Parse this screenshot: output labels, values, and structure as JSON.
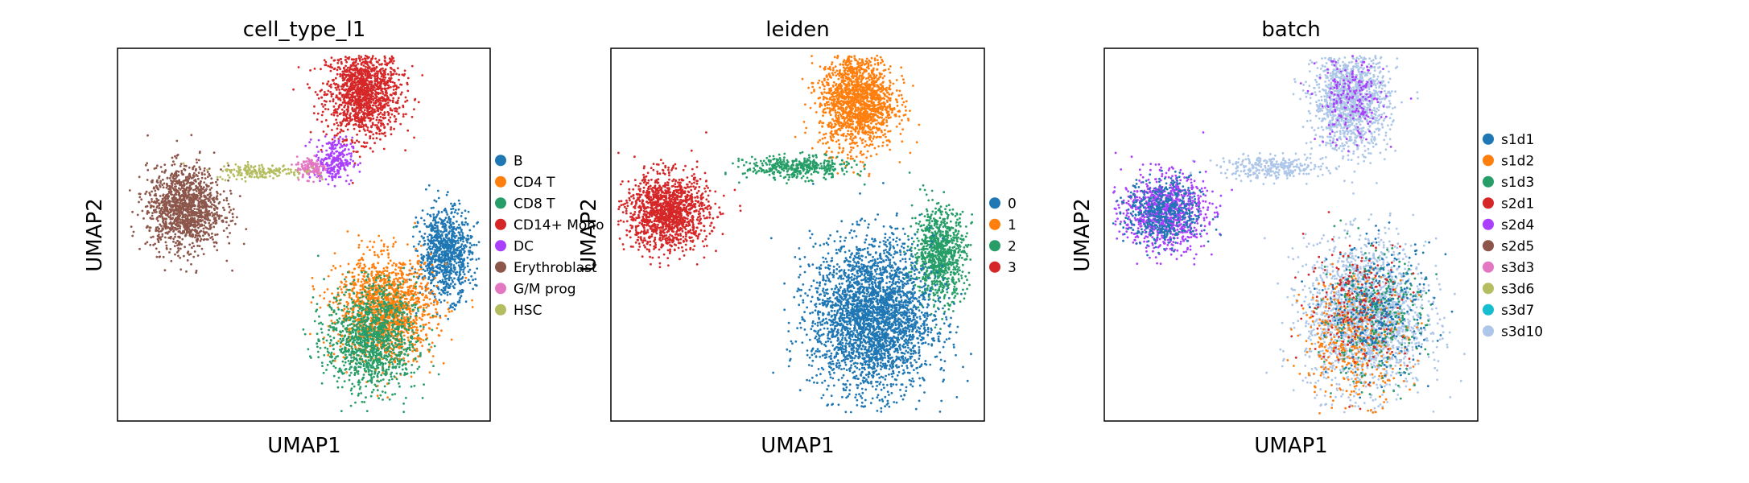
{
  "figure": {
    "background": "#ffffff",
    "axis_color": "#000000"
  },
  "chart_data": [
    {
      "type": "scatter",
      "title": "cell_type_l1",
      "xlabel": "UMAP1",
      "ylabel": "UMAP2",
      "ticks": "none",
      "grid": false,
      "legend_position": "right",
      "legend": [
        {
          "label": "B",
          "color": "#1f77b4"
        },
        {
          "label": "CD4 T",
          "color": "#ff7f0e"
        },
        {
          "label": "CD8 T",
          "color": "#279e68"
        },
        {
          "label": "CD14+ Mono",
          "color": "#d62728"
        },
        {
          "label": "DC",
          "color": "#aa40fc"
        },
        {
          "label": "Erythroblast",
          "color": "#8c564b"
        },
        {
          "label": "G/M prog",
          "color": "#e377c2"
        },
        {
          "label": "HSC",
          "color": "#b5bd61"
        }
      ],
      "regions": [
        {
          "label": "CD14+ Mono",
          "color": "#d62728",
          "cx": 0.66,
          "cy": 0.88,
          "rx": 0.1,
          "ry": 0.12,
          "n": 1400
        },
        {
          "label": "DC",
          "color": "#aa40fc",
          "cx": 0.58,
          "cy": 0.7,
          "rx": 0.05,
          "ry": 0.06,
          "n": 250
        },
        {
          "label": "G/M prog",
          "color": "#e377c2",
          "cx": 0.52,
          "cy": 0.68,
          "rx": 0.04,
          "ry": 0.03,
          "n": 120
        },
        {
          "label": "HSC",
          "color": "#b5bd61",
          "cx": 0.38,
          "cy": 0.67,
          "rx": 0.12,
          "ry": 0.02,
          "n": 180
        },
        {
          "label": "Erythroblast",
          "color": "#8c564b",
          "cx": 0.18,
          "cy": 0.57,
          "rx": 0.1,
          "ry": 0.11,
          "n": 1300
        },
        {
          "label": "B",
          "color": "#1f77b4",
          "cx": 0.88,
          "cy": 0.45,
          "rx": 0.07,
          "ry": 0.12,
          "n": 900
        },
        {
          "label": "CD4 T",
          "color": "#ff7f0e",
          "cx": 0.72,
          "cy": 0.3,
          "rx": 0.13,
          "ry": 0.14,
          "n": 1500
        },
        {
          "label": "CD8 T",
          "color": "#279e68",
          "cx": 0.68,
          "cy": 0.22,
          "rx": 0.12,
          "ry": 0.14,
          "n": 1200
        }
      ]
    },
    {
      "type": "scatter",
      "title": "leiden",
      "xlabel": "UMAP1",
      "ylabel": "UMAP2",
      "ticks": "none",
      "grid": false,
      "legend_position": "right",
      "legend": [
        {
          "label": "0",
          "color": "#1f77b4"
        },
        {
          "label": "1",
          "color": "#ff7f0e"
        },
        {
          "label": "2",
          "color": "#279e68"
        },
        {
          "label": "3",
          "color": "#d62728"
        }
      ],
      "regions": [
        {
          "label": "1",
          "color": "#ff7f0e",
          "cx": 0.66,
          "cy": 0.86,
          "rx": 0.1,
          "ry": 0.13,
          "n": 1600
        },
        {
          "label": "2",
          "color": "#279e68",
          "cx": 0.5,
          "cy": 0.68,
          "rx": 0.14,
          "ry": 0.03,
          "n": 400
        },
        {
          "label": "2",
          "color": "#279e68",
          "cx": 0.88,
          "cy": 0.45,
          "rx": 0.07,
          "ry": 0.12,
          "n": 900
        },
        {
          "label": "3",
          "color": "#d62728",
          "cx": 0.15,
          "cy": 0.56,
          "rx": 0.11,
          "ry": 0.1,
          "n": 1400
        },
        {
          "label": "0",
          "color": "#1f77b4",
          "cx": 0.7,
          "cy": 0.28,
          "rx": 0.16,
          "ry": 0.2,
          "n": 3000
        }
      ]
    },
    {
      "type": "scatter",
      "title": "batch",
      "xlabel": "UMAP1",
      "ylabel": "UMAP2",
      "ticks": "none",
      "grid": false,
      "legend_position": "right",
      "legend": [
        {
          "label": "s1d1",
          "color": "#1f77b4"
        },
        {
          "label": "s1d2",
          "color": "#ff7f0e"
        },
        {
          "label": "s1d3",
          "color": "#279e68"
        },
        {
          "label": "s2d1",
          "color": "#d62728"
        },
        {
          "label": "s2d4",
          "color": "#aa40fc"
        },
        {
          "label": "s2d5",
          "color": "#8c564b"
        },
        {
          "label": "s3d3",
          "color": "#e377c2"
        },
        {
          "label": "s3d6",
          "color": "#b5bd61"
        },
        {
          "label": "s3d7",
          "color": "#17becf"
        },
        {
          "label": "s3d10",
          "color": "#aec7e8"
        }
      ],
      "regions": [
        {
          "label": "s3d10",
          "color": "#aec7e8",
          "cx": 0.66,
          "cy": 0.86,
          "rx": 0.1,
          "ry": 0.13,
          "n": 1400
        },
        {
          "label": "s3d10",
          "color": "#aec7e8",
          "cx": 0.45,
          "cy": 0.68,
          "rx": 0.14,
          "ry": 0.03,
          "n": 300
        },
        {
          "label": "s2d4",
          "color": "#aa40fc",
          "cx": 0.16,
          "cy": 0.56,
          "rx": 0.11,
          "ry": 0.1,
          "n": 900
        },
        {
          "label": "s1d1",
          "color": "#1f77b4",
          "cx": 0.16,
          "cy": 0.56,
          "rx": 0.1,
          "ry": 0.09,
          "n": 500
        },
        {
          "label": "s3d10",
          "color": "#aec7e8",
          "cx": 0.7,
          "cy": 0.28,
          "rx": 0.16,
          "ry": 0.2,
          "n": 2000
        },
        {
          "label": "s1d2",
          "color": "#ff7f0e",
          "cx": 0.67,
          "cy": 0.22,
          "rx": 0.14,
          "ry": 0.17,
          "n": 400
        },
        {
          "label": "s1d3",
          "color": "#279e68",
          "cx": 0.72,
          "cy": 0.28,
          "rx": 0.14,
          "ry": 0.17,
          "n": 300
        },
        {
          "label": "s2d1",
          "color": "#d62728",
          "cx": 0.68,
          "cy": 0.32,
          "rx": 0.14,
          "ry": 0.17,
          "n": 200
        },
        {
          "label": "s1d1",
          "color": "#1f77b4",
          "cx": 0.74,
          "cy": 0.3,
          "rx": 0.14,
          "ry": 0.17,
          "n": 300
        },
        {
          "label": "s2d4",
          "color": "#aa40fc",
          "cx": 0.66,
          "cy": 0.86,
          "rx": 0.09,
          "ry": 0.12,
          "n": 200
        }
      ]
    }
  ]
}
